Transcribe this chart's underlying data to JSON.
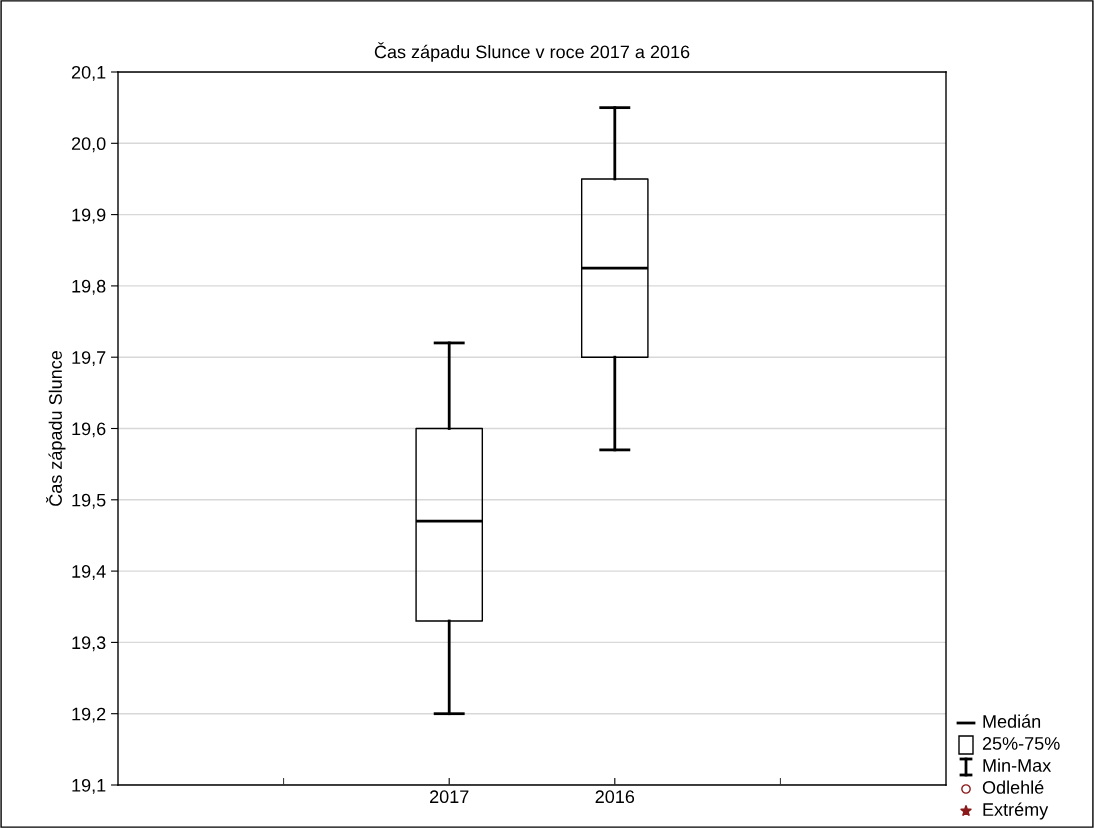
{
  "chart_data": {
    "type": "box",
    "title": "Čas západu Slunce v roce 2017 a 2016",
    "ylabel": "Čas západu Slunce",
    "categories": [
      "2017",
      "2016"
    ],
    "boxes": [
      {
        "low": 19.2,
        "q1": 19.33,
        "median": 19.47,
        "q3": 19.6,
        "high": 19.72
      },
      {
        "low": 19.57,
        "q1": 19.7,
        "median": 19.825,
        "q3": 19.95,
        "high": 20.05
      }
    ],
    "ylim": [
      19.1,
      20.1
    ],
    "yticks": [
      {
        "value": 19.1,
        "label": "19,1"
      },
      {
        "value": 19.2,
        "label": "19,2"
      },
      {
        "value": 19.3,
        "label": "19,3"
      },
      {
        "value": 19.4,
        "label": "19,4"
      },
      {
        "value": 19.5,
        "label": "19,5"
      },
      {
        "value": 19.6,
        "label": "19,6"
      },
      {
        "value": 19.7,
        "label": "19,7"
      },
      {
        "value": 19.8,
        "label": "19,8"
      },
      {
        "value": 19.9,
        "label": "19,9"
      },
      {
        "value": 20.0,
        "label": "20,0"
      },
      {
        "value": 20.1,
        "label": "20,1"
      }
    ],
    "grid": "y",
    "annotations": [
      "Medián",
      "25%-75%",
      "Min-Max",
      "Odlehlé",
      "Extrémy"
    ]
  }
}
